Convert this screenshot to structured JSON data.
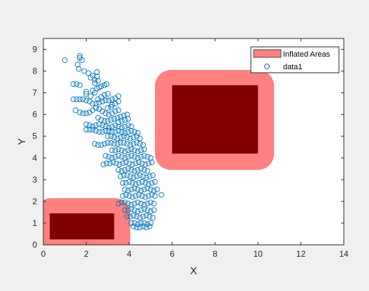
{
  "chart_data": {
    "type": "scatter",
    "title": "",
    "xlabel": "X",
    "ylabel": "Y",
    "xlim": [
      0,
      14
    ],
    "ylim": [
      0,
      9.5
    ],
    "xticks": [
      0,
      2,
      4,
      6,
      8,
      10,
      12,
      14
    ],
    "yticks": [
      0,
      1,
      2,
      3,
      4,
      5,
      6,
      7,
      8,
      9
    ],
    "xtick_labels": [
      "0",
      "2",
      "4",
      "6",
      "8",
      "10",
      "12",
      "14"
    ],
    "ytick_labels": [
      "0",
      "1",
      "2",
      "3",
      "4",
      "5",
      "6",
      "7",
      "8",
      "9"
    ],
    "grid": false,
    "legend_position": "top-right",
    "legend": [
      {
        "label": "Inflated Areas",
        "marker": "patch",
        "color": "#ff8080"
      },
      {
        "label": "data1",
        "marker": "circle",
        "color": "#0072bd"
      }
    ],
    "obstacles": [
      {
        "x": [
          0.3,
          3.3
        ],
        "y": [
          0.25,
          1.45
        ]
      },
      {
        "x": [
          6.0,
          10.0
        ],
        "y": [
          4.2,
          7.35
        ]
      }
    ],
    "inflated_areas": [
      {
        "x": [
          -0.35,
          4.05
        ],
        "y": [
          -0.45,
          2.15
        ],
        "corner_radius": 0.7
      },
      {
        "x": [
          5.2,
          10.75
        ],
        "y": [
          3.45,
          8.05
        ],
        "corner_radius": 0.75
      }
    ],
    "series": [
      {
        "name": "data1",
        "style": "circle",
        "color": "#0072bd",
        "points": [
          [
            1.0,
            8.5
          ],
          [
            1.7,
            8.7
          ],
          [
            1.7,
            8.6
          ],
          [
            1.8,
            8.5
          ],
          [
            1.6,
            8.3
          ],
          [
            1.65,
            8.1
          ],
          [
            1.9,
            8.0
          ],
          [
            2.1,
            7.9
          ],
          [
            2.2,
            7.7
          ],
          [
            2.3,
            7.8
          ],
          [
            2.4,
            7.6
          ],
          [
            2.4,
            7.45
          ],
          [
            2.5,
            7.95
          ],
          [
            2.5,
            7.75
          ],
          [
            2.55,
            7.55
          ],
          [
            1.4,
            7.4
          ],
          [
            1.55,
            7.4
          ],
          [
            1.7,
            7.35
          ],
          [
            2.0,
            7.05
          ],
          [
            2.3,
            7.1
          ],
          [
            2.4,
            7.0
          ],
          [
            2.5,
            7.2
          ],
          [
            2.6,
            7.25
          ],
          [
            2.7,
            7.3
          ],
          [
            2.85,
            7.35
          ],
          [
            2.95,
            7.4
          ],
          [
            2.0,
            6.95
          ],
          [
            2.2,
            6.85
          ],
          [
            2.55,
            6.7
          ],
          [
            2.7,
            6.8
          ],
          [
            2.85,
            6.9
          ],
          [
            3.0,
            6.95
          ],
          [
            1.4,
            6.7
          ],
          [
            1.55,
            6.7
          ],
          [
            1.7,
            6.7
          ],
          [
            1.85,
            6.7
          ],
          [
            2.0,
            6.65
          ],
          [
            2.15,
            6.6
          ],
          [
            2.3,
            6.5
          ],
          [
            2.45,
            6.5
          ],
          [
            2.6,
            6.55
          ],
          [
            2.75,
            6.6
          ],
          [
            2.9,
            6.65
          ],
          [
            3.05,
            6.65
          ],
          [
            3.2,
            6.7
          ],
          [
            3.35,
            6.75
          ],
          [
            3.5,
            6.85
          ],
          [
            3.2,
            6.45
          ],
          [
            3.35,
            6.5
          ],
          [
            3.5,
            6.6
          ],
          [
            1.5,
            6.2
          ],
          [
            1.7,
            6.1
          ],
          [
            1.85,
            6.05
          ],
          [
            2.0,
            6.05
          ],
          [
            2.15,
            6.1
          ],
          [
            2.3,
            6.2
          ],
          [
            2.45,
            6.3
          ],
          [
            2.6,
            6.25
          ],
          [
            2.75,
            6.15
          ],
          [
            2.9,
            6.05
          ],
          [
            3.05,
            6.0
          ],
          [
            3.2,
            6.05
          ],
          [
            3.35,
            6.15
          ],
          [
            3.5,
            6.2
          ],
          [
            3.0,
            6.3
          ],
          [
            3.15,
            6.35
          ],
          [
            2.55,
            5.85
          ],
          [
            2.7,
            5.75
          ],
          [
            2.85,
            5.7
          ],
          [
            3.0,
            5.7
          ],
          [
            3.15,
            5.75
          ],
          [
            3.3,
            5.8
          ],
          [
            3.45,
            5.85
          ],
          [
            3.6,
            5.9
          ],
          [
            3.75,
            5.95
          ],
          [
            3.9,
            6.0
          ],
          [
            3.5,
            5.65
          ],
          [
            3.65,
            5.7
          ],
          [
            3.8,
            5.75
          ],
          [
            3.95,
            5.8
          ],
          [
            2.0,
            5.55
          ],
          [
            2.15,
            5.5
          ],
          [
            2.3,
            5.45
          ],
          [
            2.45,
            5.5
          ],
          [
            2.6,
            5.55
          ],
          [
            2.75,
            5.5
          ],
          [
            2.9,
            5.45
          ],
          [
            3.05,
            5.4
          ],
          [
            3.2,
            5.45
          ],
          [
            3.35,
            5.5
          ],
          [
            3.5,
            5.45
          ],
          [
            3.65,
            5.4
          ],
          [
            3.8,
            5.45
          ],
          [
            3.95,
            5.5
          ],
          [
            4.1,
            5.45
          ],
          [
            2.0,
            5.3
          ],
          [
            2.15,
            5.3
          ],
          [
            2.3,
            5.3
          ],
          [
            2.45,
            5.25
          ],
          [
            2.6,
            5.2
          ],
          [
            2.75,
            5.2
          ],
          [
            2.9,
            5.25
          ],
          [
            3.05,
            5.25
          ],
          [
            3.2,
            5.2
          ],
          [
            3.35,
            5.2
          ],
          [
            3.5,
            5.25
          ],
          [
            3.65,
            5.2
          ],
          [
            3.8,
            5.15
          ],
          [
            3.95,
            5.2
          ],
          [
            4.1,
            5.25
          ],
          [
            4.25,
            5.2
          ],
          [
            4.4,
            5.15
          ],
          [
            3.0,
            5.0
          ],
          [
            3.15,
            5.0
          ],
          [
            3.3,
            4.95
          ],
          [
            3.45,
            4.9
          ],
          [
            3.6,
            4.95
          ],
          [
            3.75,
            5.0
          ],
          [
            3.9,
            4.95
          ],
          [
            4.05,
            4.9
          ],
          [
            4.2,
            4.95
          ],
          [
            4.35,
            5.0
          ],
          [
            4.5,
            4.9
          ],
          [
            2.4,
            4.65
          ],
          [
            2.55,
            4.6
          ],
          [
            2.7,
            4.6
          ],
          [
            2.85,
            4.65
          ],
          [
            3.0,
            4.7
          ],
          [
            3.15,
            4.7
          ],
          [
            3.3,
            4.65
          ],
          [
            3.45,
            4.65
          ],
          [
            3.6,
            4.7
          ],
          [
            3.75,
            4.7
          ],
          [
            3.9,
            4.65
          ],
          [
            4.05,
            4.6
          ],
          [
            4.2,
            4.65
          ],
          [
            4.35,
            4.7
          ],
          [
            4.5,
            4.65
          ],
          [
            4.65,
            4.6
          ],
          [
            3.2,
            4.35
          ],
          [
            3.35,
            4.35
          ],
          [
            3.5,
            4.4
          ],
          [
            3.65,
            4.35
          ],
          [
            3.8,
            4.3
          ],
          [
            3.95,
            4.35
          ],
          [
            4.1,
            4.4
          ],
          [
            4.25,
            4.35
          ],
          [
            4.4,
            4.3
          ],
          [
            4.55,
            4.35
          ],
          [
            4.7,
            4.4
          ],
          [
            2.9,
            4.1
          ],
          [
            3.05,
            4.05
          ],
          [
            3.2,
            4.0
          ],
          [
            3.35,
            4.05
          ],
          [
            3.5,
            4.1
          ],
          [
            3.65,
            4.05
          ],
          [
            3.8,
            4.0
          ],
          [
            3.95,
            4.05
          ],
          [
            4.1,
            4.1
          ],
          [
            4.25,
            4.05
          ],
          [
            4.4,
            4.0
          ],
          [
            4.55,
            4.05
          ],
          [
            4.7,
            4.1
          ],
          [
            4.85,
            4.05
          ],
          [
            5.0,
            4.0
          ],
          [
            2.8,
            3.7
          ],
          [
            2.95,
            3.75
          ],
          [
            3.1,
            3.75
          ],
          [
            3.25,
            3.8
          ],
          [
            3.4,
            3.75
          ],
          [
            3.55,
            3.7
          ],
          [
            3.7,
            3.75
          ],
          [
            3.85,
            3.8
          ],
          [
            4.0,
            3.75
          ],
          [
            4.15,
            3.7
          ],
          [
            4.3,
            3.75
          ],
          [
            4.45,
            3.8
          ],
          [
            4.6,
            3.75
          ],
          [
            4.75,
            3.7
          ],
          [
            4.9,
            3.75
          ],
          [
            5.05,
            3.8
          ],
          [
            3.5,
            3.45
          ],
          [
            3.65,
            3.4
          ],
          [
            3.8,
            3.45
          ],
          [
            3.95,
            3.5
          ],
          [
            4.1,
            3.45
          ],
          [
            4.25,
            3.4
          ],
          [
            4.4,
            3.45
          ],
          [
            4.55,
            3.5
          ],
          [
            4.7,
            3.45
          ],
          [
            4.85,
            3.4
          ],
          [
            3.6,
            3.15
          ],
          [
            3.75,
            3.2
          ],
          [
            3.9,
            3.2
          ],
          [
            4.05,
            3.15
          ],
          [
            4.2,
            3.1
          ],
          [
            4.35,
            3.15
          ],
          [
            4.5,
            3.2
          ],
          [
            4.65,
            3.15
          ],
          [
            4.8,
            3.1
          ],
          [
            4.95,
            3.15
          ],
          [
            5.1,
            3.2
          ],
          [
            3.7,
            2.85
          ],
          [
            3.85,
            2.85
          ],
          [
            4.0,
            2.9
          ],
          [
            4.15,
            2.85
          ],
          [
            4.3,
            2.8
          ],
          [
            4.45,
            2.85
          ],
          [
            4.6,
            2.9
          ],
          [
            4.75,
            2.85
          ],
          [
            4.9,
            2.8
          ],
          [
            5.05,
            2.85
          ],
          [
            5.2,
            2.9
          ],
          [
            3.8,
            2.55
          ],
          [
            3.95,
            2.5
          ],
          [
            4.1,
            2.55
          ],
          [
            4.25,
            2.6
          ],
          [
            4.4,
            2.55
          ],
          [
            4.55,
            2.5
          ],
          [
            4.7,
            2.55
          ],
          [
            4.85,
            2.6
          ],
          [
            5.0,
            2.55
          ],
          [
            5.15,
            2.5
          ],
          [
            5.3,
            2.55
          ],
          [
            3.7,
            2.25
          ],
          [
            3.85,
            2.3
          ],
          [
            4.0,
            2.25
          ],
          [
            4.15,
            2.2
          ],
          [
            4.3,
            2.25
          ],
          [
            4.45,
            2.3
          ],
          [
            4.6,
            2.25
          ],
          [
            4.75,
            2.2
          ],
          [
            4.9,
            2.25
          ],
          [
            5.05,
            2.3
          ],
          [
            5.2,
            2.25
          ],
          [
            5.5,
            2.3
          ],
          [
            3.5,
            1.9
          ],
          [
            3.65,
            1.95
          ],
          [
            3.8,
            1.95
          ],
          [
            3.95,
            1.9
          ],
          [
            4.1,
            1.85
          ],
          [
            4.25,
            1.9
          ],
          [
            4.4,
            1.95
          ],
          [
            4.55,
            1.9
          ],
          [
            4.7,
            1.85
          ],
          [
            4.85,
            1.9
          ],
          [
            5.0,
            1.95
          ],
          [
            5.15,
            1.9
          ],
          [
            3.8,
            1.6
          ],
          [
            3.95,
            1.6
          ],
          [
            4.1,
            1.65
          ],
          [
            4.25,
            1.6
          ],
          [
            4.4,
            1.55
          ],
          [
            4.55,
            1.6
          ],
          [
            4.7,
            1.65
          ],
          [
            4.85,
            1.6
          ],
          [
            5.0,
            1.55
          ],
          [
            5.15,
            1.6
          ],
          [
            3.9,
            1.3
          ],
          [
            4.05,
            1.3
          ],
          [
            4.2,
            1.35
          ],
          [
            4.35,
            1.3
          ],
          [
            4.5,
            1.25
          ],
          [
            4.65,
            1.3
          ],
          [
            4.8,
            1.35
          ],
          [
            4.95,
            1.3
          ],
          [
            5.1,
            1.25
          ],
          [
            4.1,
            1.0
          ],
          [
            4.25,
            1.0
          ],
          [
            4.4,
            0.95
          ],
          [
            4.55,
            1.0
          ],
          [
            4.7,
            1.0
          ],
          [
            4.85,
            0.95
          ],
          [
            5.0,
            1.0
          ],
          [
            4.2,
            0.85
          ],
          [
            4.35,
            0.8
          ],
          [
            4.5,
            0.8
          ],
          [
            4.65,
            0.85
          ],
          [
            4.8,
            0.8
          ],
          [
            4.95,
            0.85
          ]
        ]
      }
    ]
  }
}
